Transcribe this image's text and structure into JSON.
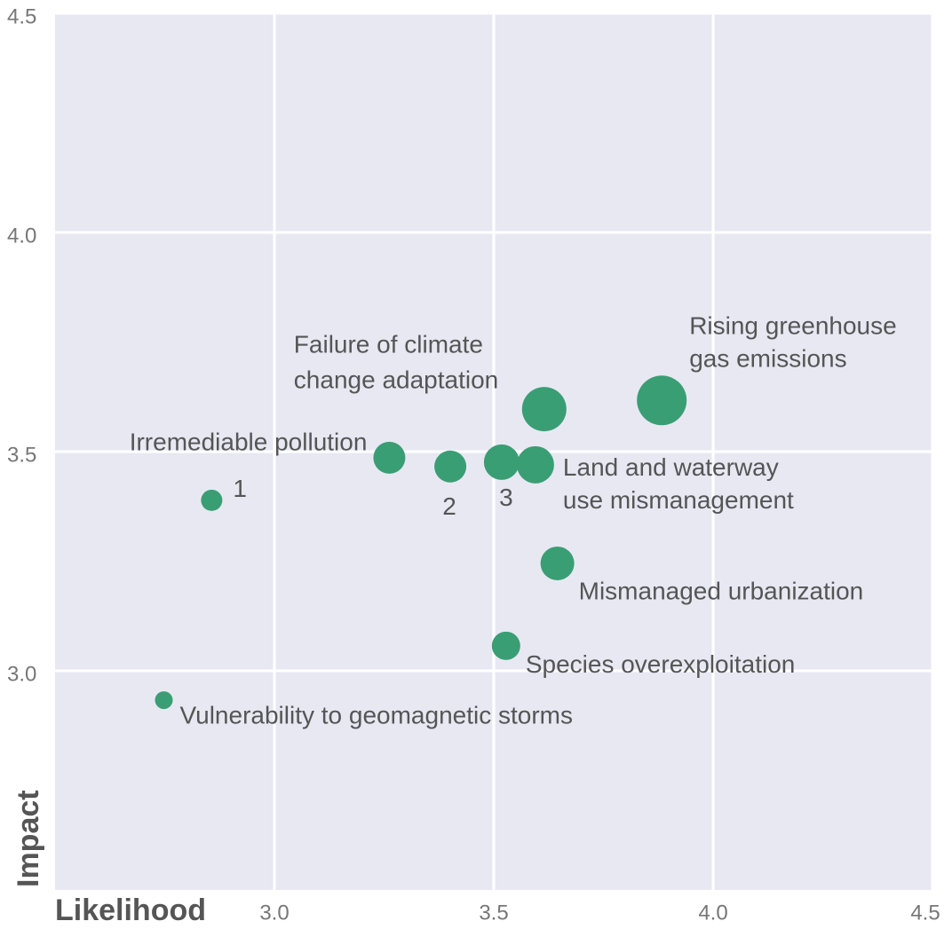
{
  "chart_data": {
    "type": "scatter",
    "xlabel": "Likelihood",
    "ylabel": "Impact",
    "x": [
      2.857,
      3.262,
      3.401,
      3.518,
      3.595,
      3.615,
      3.883,
      3.645,
      3.528,
      2.748
    ],
    "values": [
      3.389,
      3.486,
      3.466,
      3.476,
      3.47,
      3.597,
      3.617,
      3.245,
      3.057,
      2.933
    ],
    "sizes": [
      12,
      18,
      18,
      20,
      21,
      25,
      28,
      19,
      16,
      10
    ],
    "labels": [
      [
        "1"
      ],
      [
        "Irremediable pollution"
      ],
      [
        "2"
      ],
      [
        "3"
      ],
      [
        "Land and waterway",
        "use mismanagement"
      ],
      [
        "Failure of climate",
        "change adaptation"
      ],
      [
        "Rising greenhouse",
        "gas emissions"
      ],
      [
        "Mismanaged urbanization"
      ],
      [
        "Species overexploitation"
      ],
      [
        "Vulnerability to geomagnetic storms"
      ]
    ],
    "color": "#3a9e74",
    "xlim": [
      2.5,
      4.5
    ],
    "ylim": [
      2.5,
      4.5
    ],
    "xticks": [
      {
        "value": 3,
        "label": "3.0"
      },
      3.5,
      {
        "value": 4,
        "label": "4.0"
      },
      4.5
    ],
    "yticks": [
      {
        "value": 3,
        "label": "3.0"
      },
      3.5,
      {
        "value": 4,
        "label": "4.0"
      },
      4.5
    ],
    "grid": true
  }
}
